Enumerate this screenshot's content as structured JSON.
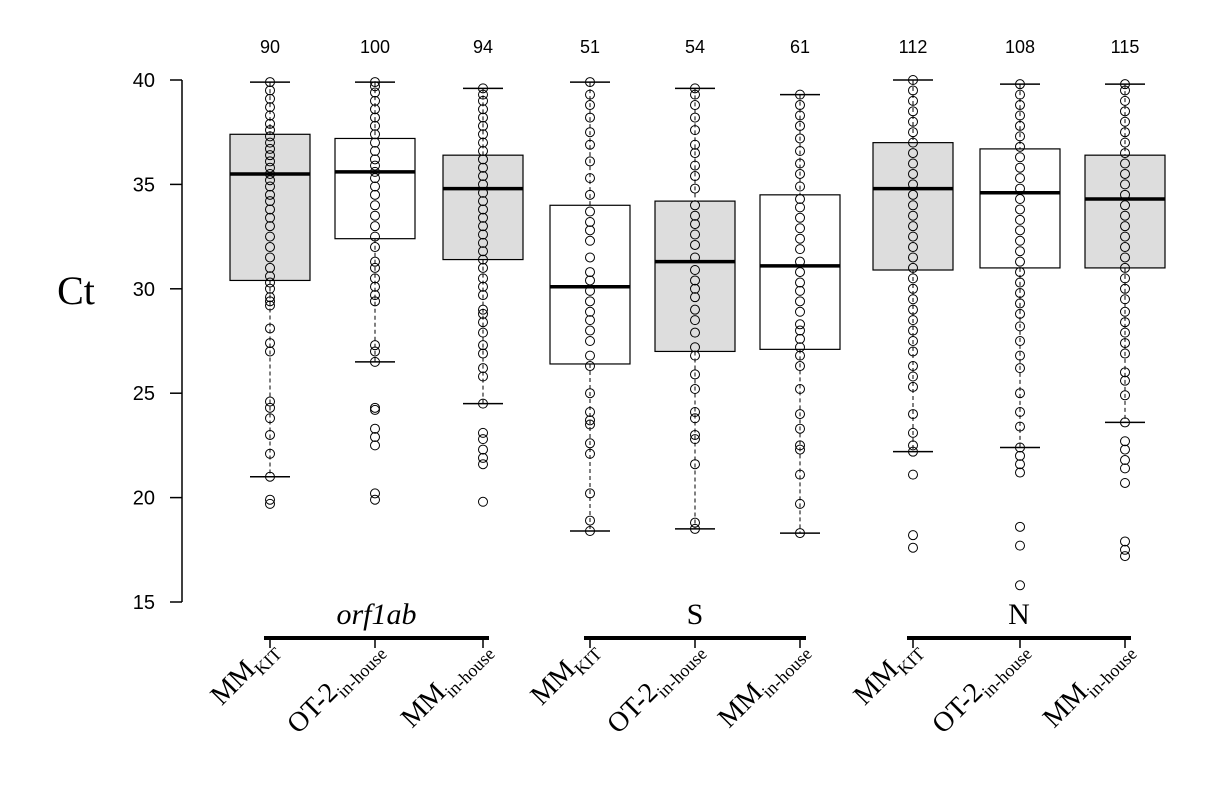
{
  "chart_data": {
    "type": "boxplot",
    "title": "",
    "ylabel": "Ct",
    "ylim": [
      15,
      40
    ],
    "yticks": [
      15,
      20,
      25,
      30,
      35,
      40
    ],
    "grid": false,
    "groups": [
      {
        "label": "orf1ab",
        "italic": true
      },
      {
        "label": "S",
        "italic": false
      },
      {
        "label": "N",
        "italic": false
      }
    ],
    "boxes": [
      {
        "group": 0,
        "label": "MM",
        "sub": "KIT",
        "count": "90",
        "fill": "#dddddd",
        "q1": 30.4,
        "median": 35.5,
        "q3": 37.4,
        "whisker_low": 21.0,
        "whisker_high": 39.9,
        "points": [
          19.7,
          19.9,
          21.0,
          22.1,
          23.0,
          23.8,
          24.3,
          24.6,
          27.0,
          27.4,
          28.1,
          29.2,
          29.4,
          29.6,
          30.0,
          30.3,
          30.6,
          31.0,
          31.5,
          32.0,
          32.5,
          33.0,
          33.4,
          33.8,
          34.2,
          34.5,
          34.9,
          35.2,
          35.5,
          35.8,
          36.1,
          36.4,
          36.7,
          37.0,
          37.3,
          37.6,
          37.9,
          38.3,
          38.7,
          39.1,
          39.5,
          39.9
        ]
      },
      {
        "group": 0,
        "label": "OT-2",
        "sub": "in-house",
        "count": "100",
        "fill": "#ffffff",
        "q1": 32.4,
        "median": 35.6,
        "q3": 37.2,
        "whisker_low": 26.5,
        "whisker_high": 39.9,
        "points": [
          19.9,
          20.2,
          22.5,
          22.9,
          23.3,
          24.2,
          24.3,
          26.5,
          27.0,
          27.3,
          29.4,
          29.7,
          30.1,
          30.5,
          31.0,
          31.3,
          32.0,
          32.5,
          33.0,
          33.5,
          34.0,
          34.5,
          34.9,
          35.3,
          35.6,
          35.9,
          36.2,
          36.6,
          37.0,
          37.4,
          37.8,
          38.2,
          38.6,
          39.0,
          39.4,
          39.7,
          39.9
        ]
      },
      {
        "group": 0,
        "label": "MM",
        "sub": "in-house",
        "count": "94",
        "fill": "#dddddd",
        "q1": 31.4,
        "median": 34.8,
        "q3": 36.4,
        "whisker_low": 24.5,
        "whisker_high": 39.6,
        "points": [
          19.8,
          21.6,
          21.9,
          22.3,
          22.8,
          23.1,
          24.5,
          25.8,
          26.2,
          26.9,
          27.3,
          27.9,
          28.4,
          28.8,
          29.0,
          29.7,
          30.1,
          30.5,
          31.0,
          31.4,
          31.8,
          32.2,
          32.6,
          33.0,
          33.4,
          33.8,
          34.2,
          34.6,
          35.0,
          35.4,
          35.8,
          36.2,
          36.6,
          37.0,
          37.4,
          37.8,
          38.2,
          38.6,
          39.0,
          39.3,
          39.6
        ]
      },
      {
        "group": 1,
        "label": "MM",
        "sub": "KIT",
        "count": "51",
        "fill": "#ffffff",
        "q1": 26.4,
        "median": 30.1,
        "q3": 34.0,
        "whisker_low": 18.4,
        "whisker_high": 39.9,
        "points": [
          18.4,
          18.9,
          20.2,
          22.1,
          22.6,
          23.5,
          23.7,
          24.1,
          25.0,
          26.3,
          26.8,
          27.5,
          28.0,
          28.5,
          28.9,
          29.4,
          29.9,
          30.4,
          30.8,
          31.5,
          32.3,
          32.8,
          33.2,
          33.7,
          34.5,
          35.3,
          36.1,
          36.9,
          37.5,
          38.2,
          38.8,
          39.3,
          39.9
        ]
      },
      {
        "group": 1,
        "label": "OT-2",
        "sub": "in-house",
        "count": "54",
        "fill": "#dddddd",
        "q1": 27.0,
        "median": 31.3,
        "q3": 34.2,
        "whisker_low": 18.5,
        "whisker_high": 39.6,
        "points": [
          18.5,
          18.8,
          21.6,
          22.8,
          23.0,
          23.8,
          24.1,
          25.2,
          25.9,
          26.8,
          27.2,
          27.9,
          28.5,
          29.0,
          29.6,
          30.0,
          30.4,
          30.9,
          31.5,
          32.1,
          32.6,
          33.1,
          33.5,
          34.0,
          34.8,
          35.4,
          35.9,
          36.5,
          36.9,
          37.6,
          38.2,
          38.8,
          39.3,
          39.6
        ]
      },
      {
        "group": 1,
        "label": "MM",
        "sub": "in-house",
        "count": "61",
        "fill": "#ffffff",
        "q1": 27.1,
        "median": 31.1,
        "q3": 34.5,
        "whisker_low": 18.3,
        "whisker_high": 39.3,
        "points": [
          18.3,
          19.7,
          21.1,
          22.3,
          22.5,
          23.3,
          24.0,
          25.2,
          26.3,
          26.8,
          27.2,
          27.6,
          28.0,
          28.3,
          28.9,
          29.4,
          29.9,
          30.3,
          30.8,
          31.3,
          31.9,
          32.4,
          32.9,
          33.4,
          33.9,
          34.3,
          34.9,
          35.5,
          36.0,
          36.6,
          37.2,
          37.8,
          38.3,
          38.8,
          39.3
        ]
      },
      {
        "group": 2,
        "label": "MM",
        "sub": "KIT",
        "count": "112",
        "fill": "#dddddd",
        "q1": 30.9,
        "median": 34.8,
        "q3": 37.0,
        "whisker_low": 22.2,
        "whisker_high": 40.0,
        "points": [
          17.6,
          18.2,
          21.1,
          22.2,
          22.5,
          23.1,
          24.0,
          25.3,
          25.8,
          26.3,
          27.0,
          27.5,
          28.0,
          28.5,
          29.0,
          29.5,
          30.0,
          30.5,
          31.0,
          31.5,
          32.0,
          32.5,
          33.0,
          33.5,
          34.0,
          34.5,
          35.0,
          35.5,
          36.0,
          36.5,
          37.0,
          37.5,
          38.0,
          38.5,
          39.0,
          39.5,
          40.0
        ]
      },
      {
        "group": 2,
        "label": "OT-2",
        "sub": "in-house",
        "count": "108",
        "fill": "#ffffff",
        "q1": 31.0,
        "median": 34.6,
        "q3": 36.7,
        "whisker_low": 22.4,
        "whisker_high": 39.8,
        "points": [
          15.8,
          17.7,
          18.6,
          21.2,
          21.6,
          22.0,
          22.4,
          23.4,
          24.1,
          25.0,
          26.2,
          26.8,
          27.5,
          28.2,
          28.8,
          29.3,
          29.8,
          30.3,
          30.8,
          31.3,
          31.8,
          32.3,
          32.8,
          33.3,
          33.8,
          34.3,
          34.8,
          35.3,
          35.8,
          36.3,
          36.8,
          37.3,
          37.8,
          38.3,
          38.8,
          39.3,
          39.8
        ]
      },
      {
        "group": 2,
        "label": "MM",
        "sub": "in-house",
        "count": "115",
        "fill": "#dddddd",
        "q1": 31.0,
        "median": 34.3,
        "q3": 36.4,
        "whisker_low": 23.6,
        "whisker_high": 39.8,
        "points": [
          17.2,
          17.5,
          17.9,
          20.7,
          21.4,
          21.8,
          22.3,
          22.7,
          23.6,
          24.9,
          25.6,
          26.0,
          26.9,
          27.4,
          27.9,
          28.4,
          28.9,
          29.5,
          30.0,
          30.5,
          31.0,
          31.5,
          32.0,
          32.5,
          33.0,
          33.5,
          34.0,
          34.5,
          35.0,
          35.5,
          36.0,
          36.5,
          37.0,
          37.5,
          38.0,
          38.5,
          39.0,
          39.5,
          39.8
        ]
      }
    ]
  }
}
